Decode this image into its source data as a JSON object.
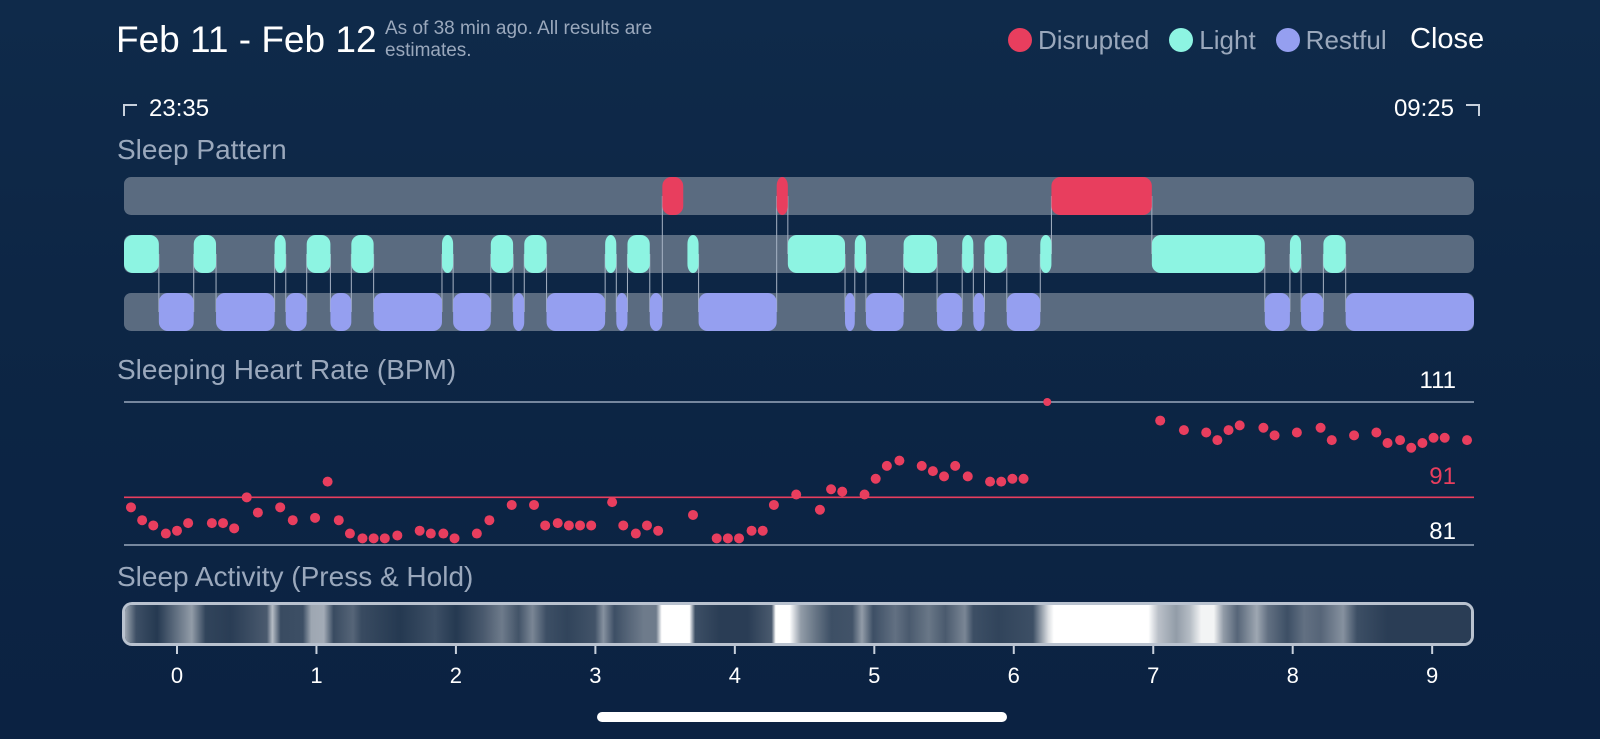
{
  "header": {
    "date_range": "Feb 11 - Feb 12",
    "as_of": "As of 38 min ago. All results are estimates.",
    "close_label": "Close"
  },
  "legend": [
    {
      "label": "Disrupted",
      "color": "#e83e5e"
    },
    {
      "label": "Light",
      "color": "#8df4e2"
    },
    {
      "label": "Restful",
      "color": "#959ff0"
    }
  ],
  "times": {
    "start": "23:35",
    "end": "09:25"
  },
  "sections": {
    "sleep_pattern": "Sleep Pattern",
    "heart_rate": "Sleeping Heart Rate (BPM)",
    "activity": "Sleep Activity (Press & Hold)"
  },
  "colors": {
    "disrupted": "#e83e5e",
    "light": "#8df4e2",
    "restful": "#959ff0",
    "track": "#5a6b80",
    "background": "#0e2747"
  },
  "sleep_pattern": {
    "hour_axis_start": -0.38,
    "hour_axis_end": 9.3,
    "disrupted": [
      [
        3.48,
        3.63
      ],
      [
        4.3,
        4.38
      ],
      [
        6.27,
        6.99
      ]
    ],
    "light": [
      [
        -0.38,
        -0.13
      ],
      [
        0.12,
        0.28
      ],
      [
        0.7,
        0.78
      ],
      [
        0.93,
        1.1
      ],
      [
        1.25,
        1.41
      ],
      [
        1.9,
        1.98
      ],
      [
        2.25,
        2.41
      ],
      [
        2.49,
        2.65
      ],
      [
        3.07,
        3.15
      ],
      [
        3.23,
        3.39
      ],
      [
        3.66,
        3.74
      ],
      [
        4.38,
        4.79
      ],
      [
        4.86,
        4.94
      ],
      [
        5.21,
        5.45
      ],
      [
        5.63,
        5.71
      ],
      [
        5.79,
        5.95
      ],
      [
        6.19,
        6.27
      ],
      [
        6.99,
        7.8
      ],
      [
        7.98,
        8.06
      ],
      [
        8.22,
        8.38
      ]
    ],
    "restful": [
      [
        -0.13,
        0.12
      ],
      [
        0.28,
        0.7
      ],
      [
        0.78,
        0.93
      ],
      [
        1.1,
        1.25
      ],
      [
        1.41,
        1.9
      ],
      [
        1.98,
        2.25
      ],
      [
        2.41,
        2.49
      ],
      [
        2.65,
        3.07
      ],
      [
        3.15,
        3.23
      ],
      [
        3.39,
        3.48
      ],
      [
        3.74,
        4.3
      ],
      [
        4.79,
        4.86
      ],
      [
        4.94,
        5.21
      ],
      [
        5.45,
        5.63
      ],
      [
        5.71,
        5.79
      ],
      [
        5.95,
        6.19
      ],
      [
        7.8,
        7.98
      ],
      [
        8.06,
        8.22
      ],
      [
        8.38,
        9.3
      ]
    ]
  },
  "chart_data": {
    "type": "scatter",
    "title": "Sleeping Heart Rate (BPM)",
    "xlabel": "",
    "ylabel": "",
    "xlim": [
      -0.38,
      9.3
    ],
    "ylim": [
      81,
      111
    ],
    "x_ticks": [
      "0",
      "1",
      "2",
      "3",
      "4",
      "5",
      "6",
      "7",
      "8",
      "9"
    ],
    "reference_lines": [
      {
        "label": "111",
        "value": 111
      },
      {
        "label": "91",
        "value": 91,
        "highlight": true
      },
      {
        "label": "81",
        "value": 81
      }
    ],
    "series": [
      {
        "points": [
          [
            -0.33,
            88.9
          ],
          [
            -0.25,
            86.2
          ],
          [
            -0.17,
            85.1
          ],
          [
            -0.08,
            83.4
          ],
          [
            0.0,
            84.0
          ],
          [
            0.08,
            85.6
          ],
          [
            0.25,
            85.6
          ],
          [
            0.33,
            85.6
          ],
          [
            0.41,
            84.5
          ],
          [
            0.5,
            91.0
          ],
          [
            0.58,
            87.8
          ],
          [
            0.74,
            88.9
          ],
          [
            0.83,
            86.2
          ],
          [
            0.99,
            86.7
          ],
          [
            1.08,
            94.3
          ],
          [
            1.16,
            86.2
          ],
          [
            1.24,
            83.4
          ],
          [
            1.33,
            82.4
          ],
          [
            1.41,
            82.4
          ],
          [
            1.49,
            82.4
          ],
          [
            1.58,
            83.0
          ],
          [
            1.74,
            84.0
          ],
          [
            1.82,
            83.4
          ],
          [
            1.91,
            83.4
          ],
          [
            1.99,
            82.4
          ],
          [
            2.15,
            83.4
          ],
          [
            2.24,
            86.2
          ],
          [
            2.4,
            89.4
          ],
          [
            2.56,
            89.4
          ],
          [
            2.64,
            85.1
          ],
          [
            2.73,
            85.6
          ],
          [
            2.81,
            85.1
          ],
          [
            2.89,
            85.1
          ],
          [
            2.97,
            85.1
          ],
          [
            3.12,
            90.0
          ],
          [
            3.2,
            85.1
          ],
          [
            3.29,
            83.4
          ],
          [
            3.37,
            85.1
          ],
          [
            3.45,
            84.0
          ],
          [
            3.7,
            87.3
          ],
          [
            3.87,
            82.4
          ],
          [
            3.95,
            82.4
          ],
          [
            4.03,
            82.4
          ],
          [
            4.12,
            84.0
          ],
          [
            4.2,
            84.0
          ],
          [
            4.28,
            89.4
          ],
          [
            4.44,
            91.6
          ],
          [
            4.61,
            88.4
          ],
          [
            4.69,
            92.7
          ],
          [
            4.77,
            92.2
          ],
          [
            4.93,
            91.6
          ],
          [
            5.01,
            94.9
          ],
          [
            5.09,
            97.6
          ],
          [
            5.18,
            98.7
          ],
          [
            5.34,
            97.6
          ],
          [
            5.42,
            96.5
          ],
          [
            5.5,
            95.4
          ],
          [
            5.58,
            97.6
          ],
          [
            5.67,
            95.4
          ],
          [
            5.83,
            94.3
          ],
          [
            5.91,
            94.3
          ],
          [
            5.99,
            94.9
          ],
          [
            6.07,
            94.9
          ],
          [
            6.24,
            111.0
          ],
          [
            7.05,
            107.1
          ],
          [
            7.22,
            105.1
          ],
          [
            7.38,
            104.6
          ],
          [
            7.46,
            103.0
          ],
          [
            7.54,
            105.1
          ],
          [
            7.62,
            106.1
          ],
          [
            7.79,
            105.6
          ],
          [
            7.87,
            104.0
          ],
          [
            8.03,
            104.6
          ],
          [
            8.2,
            105.6
          ],
          [
            8.28,
            103.0
          ],
          [
            8.44,
            104.0
          ],
          [
            8.6,
            104.6
          ],
          [
            8.68,
            102.4
          ],
          [
            8.77,
            103.0
          ],
          [
            8.85,
            101.4
          ],
          [
            8.93,
            102.4
          ],
          [
            9.01,
            103.5
          ],
          [
            9.09,
            103.5
          ],
          [
            9.25,
            103.0
          ]
        ]
      }
    ]
  },
  "activity": {
    "stops": [
      [
        -0.38,
        0.6
      ],
      [
        -0.3,
        0.2
      ],
      [
        -0.15,
        0.1
      ],
      [
        0.1,
        0.55
      ],
      [
        0.2,
        0.15
      ],
      [
        0.38,
        0.12
      ],
      [
        0.64,
        0.25
      ],
      [
        0.68,
        0.7
      ],
      [
        0.74,
        0.18
      ],
      [
        0.9,
        0.2
      ],
      [
        0.96,
        0.6
      ],
      [
        1.05,
        0.62
      ],
      [
        1.12,
        0.18
      ],
      [
        1.26,
        0.3
      ],
      [
        1.32,
        0.18
      ],
      [
        1.6,
        0.1
      ],
      [
        1.85,
        0.2
      ],
      [
        2.0,
        0.1
      ],
      [
        2.2,
        0.25
      ],
      [
        2.33,
        0.4
      ],
      [
        2.45,
        0.22
      ],
      [
        2.55,
        0.45
      ],
      [
        2.65,
        0.2
      ],
      [
        2.8,
        0.15
      ],
      [
        3.0,
        0.22
      ],
      [
        3.06,
        0.5
      ],
      [
        3.14,
        0.2
      ],
      [
        3.24,
        0.3
      ],
      [
        3.35,
        0.4
      ],
      [
        3.44,
        0.4
      ],
      [
        3.48,
        1.0
      ],
      [
        3.68,
        1.0
      ],
      [
        3.72,
        0.2
      ],
      [
        3.9,
        0.12
      ],
      [
        4.1,
        0.12
      ],
      [
        4.27,
        0.25
      ],
      [
        4.3,
        1.0
      ],
      [
        4.4,
        1.0
      ],
      [
        4.48,
        0.55
      ],
      [
        4.58,
        0.38
      ],
      [
        4.7,
        0.2
      ],
      [
        4.85,
        0.22
      ],
      [
        4.92,
        0.55
      ],
      [
        5.0,
        0.2
      ],
      [
        5.16,
        0.35
      ],
      [
        5.26,
        0.25
      ],
      [
        5.4,
        0.38
      ],
      [
        5.52,
        0.25
      ],
      [
        5.66,
        0.45
      ],
      [
        5.72,
        0.2
      ],
      [
        5.9,
        0.15
      ],
      [
        6.15,
        0.2
      ],
      [
        6.26,
        0.85
      ],
      [
        6.3,
        1.0
      ],
      [
        6.98,
        1.0
      ],
      [
        7.05,
        0.72
      ],
      [
        7.18,
        0.55
      ],
      [
        7.28,
        0.7
      ],
      [
        7.36,
        0.95
      ],
      [
        7.45,
        0.95
      ],
      [
        7.52,
        0.55
      ],
      [
        7.62,
        0.3
      ],
      [
        7.76,
        0.6
      ],
      [
        7.84,
        0.35
      ],
      [
        7.98,
        0.2
      ],
      [
        8.1,
        0.35
      ],
      [
        8.22,
        0.3
      ],
      [
        8.38,
        0.5
      ],
      [
        8.48,
        0.2
      ],
      [
        8.7,
        0.12
      ],
      [
        9.3,
        0.12
      ]
    ]
  }
}
